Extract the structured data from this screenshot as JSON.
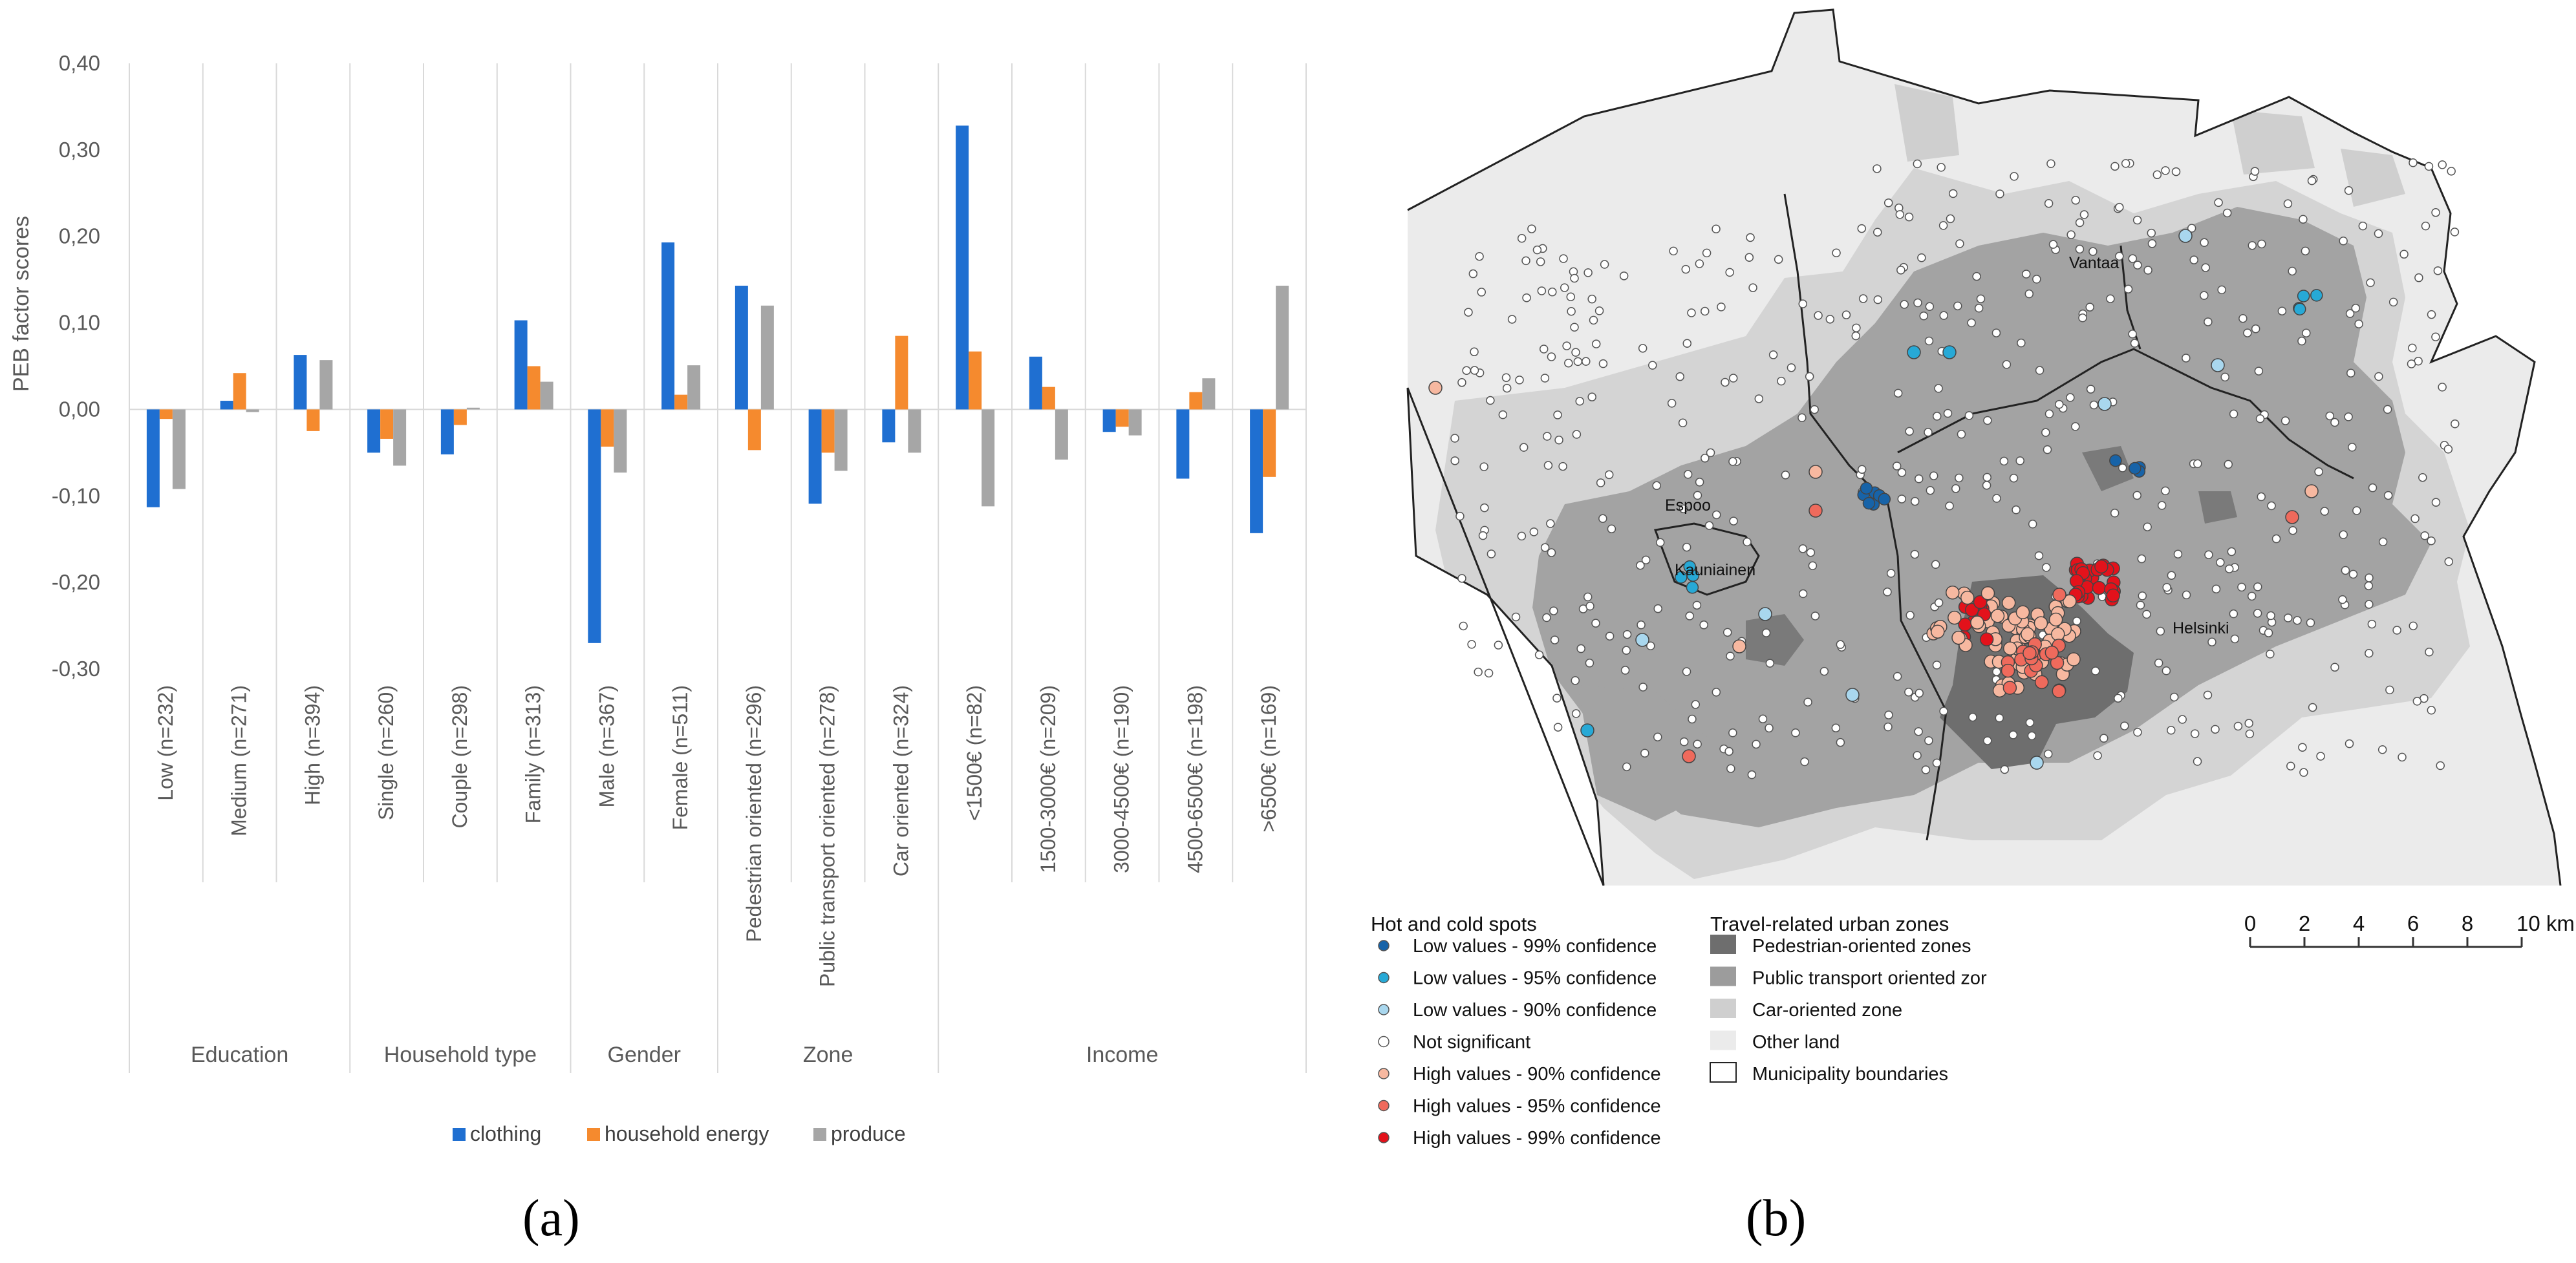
{
  "panel_labels": {
    "a": "(a)",
    "b": "(b)"
  },
  "chart_data": {
    "type": "bar",
    "ylabel": "PEB factor scores",
    "ylim": [
      -0.3,
      0.4
    ],
    "yticks": [
      "0,40",
      "0,30",
      "0,20",
      "0,10",
      "0,00",
      "-0,10",
      "-0,20",
      "-0,30"
    ],
    "ytick_values": [
      0.4,
      0.3,
      0.2,
      0.1,
      0.0,
      -0.1,
      -0.2,
      -0.3
    ],
    "categories": [
      "Low (n=232)",
      "Medium (n=271)",
      "High (n=394)",
      "Single (n=260)",
      "Couple (n=298)",
      "Family (n=313)",
      "Male (n=367)",
      "Female (n=511)",
      "Pedestrian oriented (n=296)",
      "Public transport oriented (n=278)",
      "Car oriented (n=324)",
      "<1500€ (n=82)",
      "1500-3000€ (n=209)",
      "3000-4500€ (n=190)",
      "4500-6500€ (n=198)",
      ">6500€ (n=169)"
    ],
    "groups": [
      {
        "label": "Education",
        "size": 3
      },
      {
        "label": "Household type",
        "size": 3
      },
      {
        "label": "Gender",
        "size": 2
      },
      {
        "label": "Zone",
        "size": 3
      },
      {
        "label": "Income",
        "size": 5
      }
    ],
    "series": [
      {
        "name": "clothing",
        "color": "#1f6fd1",
        "values": [
          -0.113,
          0.01,
          0.063,
          -0.05,
          -0.052,
          0.103,
          -0.27,
          0.193,
          0.143,
          -0.109,
          -0.038,
          0.328,
          0.061,
          -0.026,
          -0.08,
          -0.143
        ]
      },
      {
        "name": "household energy",
        "color": "#f58a2e",
        "values": [
          -0.011,
          0.042,
          -0.025,
          -0.034,
          -0.018,
          0.05,
          -0.043,
          0.017,
          -0.047,
          -0.05,
          0.085,
          0.067,
          0.026,
          -0.02,
          0.02,
          -0.078
        ]
      },
      {
        "name": "produce",
        "color": "#a6a6a6",
        "values": [
          -0.092,
          -0.003,
          0.057,
          -0.065,
          0.002,
          0.032,
          -0.073,
          0.051,
          0.12,
          -0.071,
          -0.05,
          -0.112,
          -0.058,
          -0.03,
          0.036,
          0.143
        ]
      }
    ]
  },
  "map": {
    "cities": [
      "Vantaa",
      "Espoo",
      "Kauniainen",
      "Helsinki"
    ],
    "legend_hotspots": {
      "title": "Hot and cold spots",
      "items": [
        {
          "label": "Low values - 99% confidence",
          "color": "#1763a8"
        },
        {
          "label": "Low values - 95% confidence",
          "color": "#27a9d6"
        },
        {
          "label": "Low values - 90% confidence",
          "color": "#a9d7ee"
        },
        {
          "label": "Not significant",
          "color": "#ffffff"
        },
        {
          "label": "High values - 90% confidence",
          "color": "#f7b8a0"
        },
        {
          "label": "High values - 95% confidence",
          "color": "#ef6a5c"
        },
        {
          "label": "High values - 99% confidence",
          "color": "#e3121b"
        }
      ]
    },
    "legend_zones": {
      "title": "Travel-related urban zones",
      "items": [
        {
          "label": "Pedestrian-oriented zones",
          "color": "#6e6e6e"
        },
        {
          "label": "Public transport oriented zor",
          "color": "#9c9c9c"
        },
        {
          "label": "Car-oriented zone",
          "color": "#cfcfcf"
        },
        {
          "label": "Other land",
          "color": "#ebebeb"
        },
        {
          "label": "Municipality boundaries",
          "color": "#ffffff"
        }
      ]
    },
    "scale_bar": {
      "labels": [
        "0",
        "2",
        "4",
        "6",
        "8",
        "10 km"
      ]
    }
  }
}
